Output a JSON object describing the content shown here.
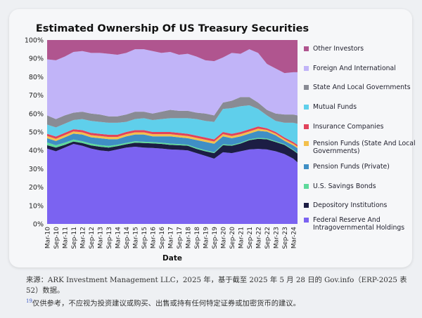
{
  "chart_data": {
    "type": "area",
    "stacked": true,
    "percent": true,
    "title": "Estimated Ownership Of US Treasury Securities",
    "xlabel": "Date",
    "ylabel": "",
    "ylim": [
      0,
      100
    ],
    "yticks": [
      "0%",
      "10%",
      "20%",
      "30%",
      "40%",
      "50%",
      "60%",
      "70%",
      "80%",
      "90%",
      "100%"
    ],
    "categories": [
      "Mar-10",
      "Sep-10",
      "Mar-11",
      "Sep-11",
      "Mar-12",
      "Sep-12",
      "Mar-13",
      "Sep-13",
      "Mar-14",
      "Sep-14",
      "Mar-15",
      "Sep-15",
      "Mar-16",
      "Sep-16",
      "Mar-17",
      "Sep-17",
      "Mar-18",
      "Sep-18",
      "Mar-19",
      "Sep-19",
      "Mar-20",
      "Sep-20",
      "Mar-21",
      "Sep-21",
      "Mar-22",
      "Sep-22",
      "Mar-23",
      "Sep-23",
      "Mar-24",
      ""
    ],
    "legend_position": "right",
    "series": [
      {
        "name": "Federal Reserve And Intragovernmental Holdings",
        "color": "#7b63f1",
        "values": [
          41,
          39.5,
          41.5,
          43.5,
          42.5,
          41,
          40,
          39.5,
          40.5,
          41.5,
          42,
          41.5,
          41.3,
          41,
          40.5,
          40.3,
          40,
          38.5,
          37,
          35.5,
          39,
          38.5,
          39.5,
          40.5,
          40.8,
          40.5,
          39.5,
          38,
          35.5,
          33.5
        ]
      },
      {
        "name": "Depository Institutions",
        "color": "#1c1d44",
        "values": [
          1.8,
          2,
          1.5,
          1.3,
          1.5,
          1.7,
          2,
          2,
          1.8,
          1.8,
          2.2,
          2.5,
          2.5,
          2.5,
          2.5,
          2.5,
          2.5,
          2.3,
          2.5,
          3,
          3.8,
          4,
          4.2,
          5,
          5.5,
          5.5,
          5,
          5,
          4.5,
          4.8
        ]
      },
      {
        "name": "U.S. Savings Bonds",
        "color": "#5ed99b",
        "values": [
          1.5,
          1.3,
          1.2,
          1.1,
          1,
          1,
          0.9,
          0.9,
          0.8,
          0.8,
          0.8,
          0.7,
          0.7,
          0.7,
          0.7,
          0.6,
          0.6,
          0.6,
          0.6,
          0.5,
          0.5,
          0.5,
          0.5,
          0.5,
          0.5,
          0.5,
          0.5,
          0.4,
          0.4,
          0.4
        ]
      },
      {
        "name": "Pension Funds (Private)",
        "color": "#3f8fc5",
        "values": [
          2.3,
          2.3,
          2.9,
          3.2,
          3.6,
          3.4,
          3.7,
          3.7,
          3.0,
          3.5,
          3.6,
          3.9,
          3.1,
          3.4,
          3.9,
          3.7,
          3.5,
          4.2,
          4.5,
          4.6,
          4.3,
          3.6,
          3.4,
          3.1,
          3.8,
          3.7,
          3.2,
          1.8,
          2.3,
          2.5
        ]
      },
      {
        "name": "Pension Funds (State And Local Governments)",
        "color": "#f3c04d",
        "values": [
          1.2,
          1.2,
          1.2,
          1.2,
          1.2,
          1.2,
          1.2,
          1.2,
          1.2,
          1.2,
          1.2,
          1.2,
          1.2,
          1.2,
          1.2,
          1.2,
          1.2,
          1.2,
          1.2,
          1.2,
          1.2,
          1.2,
          1.2,
          1.2,
          1.2,
          0.9,
          0.9,
          0.9,
          0.9,
          0.9
        ]
      },
      {
        "name": "Insurance Companies",
        "color": "#e1435b",
        "values": [
          1.2,
          1.2,
          1.2,
          1.2,
          1.2,
          1.2,
          1.2,
          1.2,
          1.2,
          1.2,
          1.2,
          1.2,
          1.2,
          1.2,
          1.2,
          1.2,
          1.2,
          1.2,
          1.2,
          1.2,
          1.2,
          1.2,
          1.2,
          1.2,
          1.2,
          0.9,
          0.9,
          0.9,
          0.9,
          0.9
        ]
      },
      {
        "name": "Mutual Funds",
        "color": "#5fcfeb",
        "values": [
          5,
          5,
          5,
          5,
          6,
          6.5,
          6.5,
          6.5,
          6.5,
          5.5,
          6,
          6.5,
          6.5,
          7,
          7.5,
          8,
          8.5,
          9,
          9,
          9.5,
          12.5,
          14,
          14,
          13,
          9.5,
          7,
          6,
          8,
          10.5,
          11.5
        ]
      },
      {
        "name": "State And Local Governments",
        "color": "#898b94",
        "values": [
          5,
          4.5,
          4.5,
          4,
          4,
          4,
          4,
          3.5,
          3.5,
          4,
          4,
          3.5,
          3.5,
          4,
          4.5,
          4,
          4,
          3.5,
          4,
          3.5,
          3.5,
          4,
          5,
          4.5,
          3.5,
          3,
          4,
          4.5,
          4.5,
          4.5
        ]
      },
      {
        "name": "Foreign And International",
        "color": "#c1b4f8",
        "values": [
          30.5,
          32,
          32,
          33,
          33,
          33,
          33.5,
          34,
          33.5,
          33.5,
          34,
          34,
          34,
          32,
          31.5,
          30.5,
          31,
          30.5,
          29,
          29.5,
          24.5,
          26,
          23.5,
          26,
          27,
          25,
          24.5,
          22.5,
          23,
          23.5
        ]
      },
      {
        "name": "Other Investors",
        "color": "#b0558f",
        "values": [
          10.5,
          11,
          9,
          6.5,
          6,
          7,
          7,
          7.5,
          8,
          7,
          5,
          5,
          6,
          7,
          6.5,
          8,
          7.5,
          9,
          11,
          11.5,
          9.5,
          7,
          7.5,
          5,
          7,
          13,
          15.5,
          18,
          17.5,
          17.5
        ]
      }
    ]
  },
  "caption": {
    "line1": "来源：ARK Investment Management LLC，2025 年，基于截至 2025 年 5 月 28 日的 Gov.info（ERP-2025 表 52）数据。",
    "footnote_mark": "19",
    "line2": "仅供参考，不应视为投资建议或购买、出售或持有任何特定证券或加密货币的建议。"
  }
}
